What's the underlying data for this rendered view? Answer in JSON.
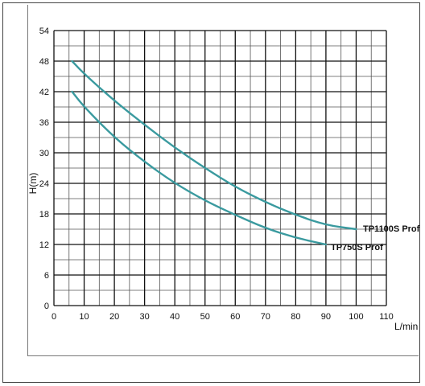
{
  "chart_data": {
    "type": "line",
    "title": "",
    "xlabel": "L/min",
    "ylabel": "H(m)",
    "xlim": [
      0,
      110
    ],
    "ylim": [
      0,
      54
    ],
    "xticks": [
      0,
      10,
      20,
      30,
      40,
      50,
      60,
      70,
      80,
      90,
      100,
      110
    ],
    "yticks": [
      0,
      6,
      12,
      18,
      24,
      30,
      36,
      42,
      48,
      54
    ],
    "grid": true,
    "legend": "inline-labels at curve ends",
    "line_color": "#3a9a9f",
    "series": [
      {
        "name": "TP1100S Prof",
        "x": [
          6,
          10,
          20,
          30,
          40,
          50,
          60,
          70,
          80,
          90,
          100
        ],
        "y": [
          48,
          45.5,
          40.2,
          35.5,
          31,
          27,
          23.3,
          20.3,
          17.8,
          15.8,
          15
        ]
      },
      {
        "name": "TP750S Prof",
        "x": [
          6,
          10,
          20,
          30,
          40,
          50,
          60,
          70,
          80,
          90
        ],
        "y": [
          42,
          39,
          33,
          28.2,
          24,
          20.6,
          17.8,
          15.2,
          13.3,
          12
        ]
      }
    ]
  }
}
